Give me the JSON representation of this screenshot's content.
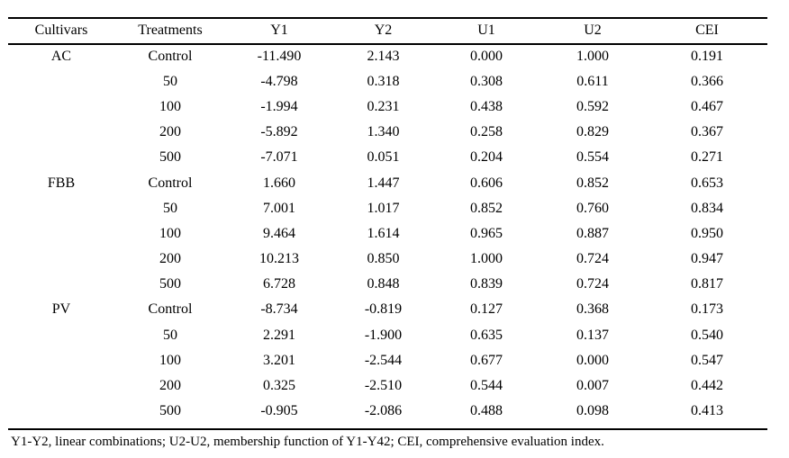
{
  "table": {
    "columns": [
      "Cultivars",
      "Treatments",
      "Y1",
      "Y2",
      "U1",
      "U2",
      "CEI"
    ],
    "groups": [
      {
        "cultivar": "AC",
        "rows": [
          {
            "treatment": "Control",
            "y1": "-11.490",
            "y2": "2.143",
            "u1": "0.000",
            "u2": "1.000",
            "cei": "0.191"
          },
          {
            "treatment": "50",
            "y1": "-4.798",
            "y2": "0.318",
            "u1": "0.308",
            "u2": "0.611",
            "cei": "0.366"
          },
          {
            "treatment": "100",
            "y1": "-1.994",
            "y2": "0.231",
            "u1": "0.438",
            "u2": "0.592",
            "cei": "0.467"
          },
          {
            "treatment": "200",
            "y1": "-5.892",
            "y2": "1.340",
            "u1": "0.258",
            "u2": "0.829",
            "cei": "0.367"
          },
          {
            "treatment": "500",
            "y1": "-7.071",
            "y2": "0.051",
            "u1": "0.204",
            "u2": "0.554",
            "cei": "0.271"
          }
        ]
      },
      {
        "cultivar": "FBB",
        "rows": [
          {
            "treatment": "Control",
            "y1": "1.660",
            "y2": "1.447",
            "u1": "0.606",
            "u2": "0.852",
            "cei": "0.653"
          },
          {
            "treatment": "50",
            "y1": "7.001",
            "y2": "1.017",
            "u1": "0.852",
            "u2": "0.760",
            "cei": "0.834"
          },
          {
            "treatment": "100",
            "y1": "9.464",
            "y2": "1.614",
            "u1": "0.965",
            "u2": "0.887",
            "cei": "0.950"
          },
          {
            "treatment": "200",
            "y1": "10.213",
            "y2": "0.850",
            "u1": "1.000",
            "u2": "0.724",
            "cei": "0.947"
          },
          {
            "treatment": "500",
            "y1": "6.728",
            "y2": "0.848",
            "u1": "0.839",
            "u2": "0.724",
            "cei": "0.817"
          }
        ]
      },
      {
        "cultivar": "PV",
        "rows": [
          {
            "treatment": "Control",
            "y1": "-8.734",
            "y2": "-0.819",
            "u1": "0.127",
            "u2": "0.368",
            "cei": "0.173"
          },
          {
            "treatment": "50",
            "y1": "2.291",
            "y2": "-1.900",
            "u1": "0.635",
            "u2": "0.137",
            "cei": "0.540"
          },
          {
            "treatment": "100",
            "y1": "3.201",
            "y2": "-2.544",
            "u1": "0.677",
            "u2": "0.000",
            "cei": "0.547"
          },
          {
            "treatment": "200",
            "y1": "0.325",
            "y2": "-2.510",
            "u1": "0.544",
            "u2": "0.007",
            "cei": "0.442"
          },
          {
            "treatment": "500",
            "y1": "-0.905",
            "y2": "-2.086",
            "u1": "0.488",
            "u2": "0.098",
            "cei": "0.413"
          }
        ]
      }
    ]
  },
  "footnote": "Y1-Y2, linear combinations; U2-U2, membership function of Y1-Y42; CEI, comprehensive evaluation index."
}
